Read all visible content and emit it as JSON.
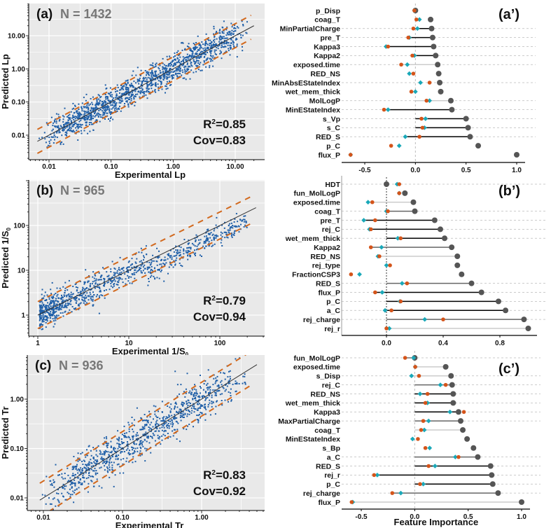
{
  "colors": {
    "plot_bg": "#e9e9e9",
    "grid": "#ffffff",
    "points": "#1f5fa8",
    "fit_line": "#333333",
    "band": "#d2691e",
    "gray_dot": "#555555",
    "orange_dot": "#d4541a",
    "teal_dot": "#1aa8b8",
    "lollipop_dark": "#000000",
    "lollipop_mid": "#666666",
    "lollipop_light": "#cccccc"
  },
  "chart_data": [
    {
      "id": "a",
      "type": "scatter",
      "panel_label": "(a)",
      "n_label": "N = 1432",
      "xlabel": "Experimental Lp",
      "ylabel": "Predicted Lp",
      "scale": "log10",
      "xlim": [
        0.006,
        25
      ],
      "ylim": [
        0.0025,
        60
      ],
      "xticks": [
        {
          "v": 0.01,
          "label": "0.01"
        },
        {
          "v": 0.1,
          "label": "0.10"
        },
        {
          "v": 1,
          "label": "1.00"
        },
        {
          "v": 10,
          "label": "10.00"
        }
      ],
      "yticks": [
        {
          "v": 0.01,
          "label": "0.01"
        },
        {
          "v": 0.1,
          "label": "0.10"
        },
        {
          "v": 1,
          "label": "1.00"
        },
        {
          "v": 10,
          "label": "10.00"
        }
      ],
      "r2_label": "R",
      "r2_value": "=0.85",
      "cov_label": "Cov=0.83",
      "fit_range": [
        0.0065,
        20
      ],
      "band_factor": 2.3,
      "n_points": 1432,
      "spread": 0.22,
      "seed": 11
    },
    {
      "id": "b",
      "type": "scatter",
      "panel_label": "(b)",
      "n_label": "N = 965",
      "xlabel": "Experimental 1/S",
      "xlabel_sub": "0",
      "ylabel": "Predicted  1/S",
      "ylabel_sub": "0",
      "scale": "log10",
      "xlim": [
        0.8,
        350
      ],
      "ylim": [
        0.35,
        900
      ],
      "xticks": [
        {
          "v": 1,
          "label": "1"
        },
        {
          "v": 10,
          "label": "10"
        },
        {
          "v": 100,
          "label": "100"
        }
      ],
      "yticks": [
        {
          "v": 1,
          "label": "1"
        },
        {
          "v": 10,
          "label": "10"
        },
        {
          "v": 100,
          "label": "100"
        }
      ],
      "r2_label": "R",
      "r2_value": "=0.79",
      "cov_label": "Cov=0.94",
      "fit_range": [
        1,
        250
      ],
      "band_factor": 2.0,
      "n_points": 965,
      "spread": 0.17,
      "seed": 23
    },
    {
      "id": "c",
      "type": "scatter",
      "panel_label": "(c)",
      "n_label": "N = 936",
      "xlabel": "Experimental Tr",
      "ylabel": "Predicted Tr",
      "scale": "log10",
      "xlim": [
        0.006,
        7
      ],
      "ylim": [
        0.005,
        7
      ],
      "xticks": [
        {
          "v": 0.01,
          "label": "0.01"
        },
        {
          "v": 0.1,
          "label": "0.10"
        },
        {
          "v": 1,
          "label": "1.00"
        }
      ],
      "yticks": [
        {
          "v": 0.01,
          "label": "0.01"
        },
        {
          "v": 0.1,
          "label": "0.10"
        },
        {
          "v": 1,
          "label": "1.00"
        }
      ],
      "r2_label": "R",
      "r2_value": "=0.83",
      "cov_label": "Cov=0.92",
      "fit_range": [
        0.009,
        5
      ],
      "band_factor": 2.2,
      "n_points": 936,
      "spread": 0.2,
      "seed": 37
    },
    {
      "id": "a_prime",
      "type": "dot",
      "panel_label": "(a’)",
      "xlim": [
        -0.72,
        1.08
      ],
      "xticks": [
        {
          "v": -0.5,
          "label": "-0.5"
        },
        {
          "v": 0,
          "label": "0.0"
        },
        {
          "v": 0.5,
          "label": "0.5"
        },
        {
          "v": 1,
          "label": "1.0"
        }
      ],
      "xlabel": "",
      "features": [
        {
          "name": "p_Disp",
          "gray": 0.0,
          "orange": -0.01,
          "teal": -0.01,
          "line": "none",
          "dashed": false
        },
        {
          "name": "coag_T",
          "gray": 0.15,
          "orange": 0.01,
          "teal": 0.04,
          "line": "none",
          "dashed": false
        },
        {
          "name": "MinPartialCharge",
          "gray": 0.16,
          "orange": -0.02,
          "teal": 0.02,
          "line": "dark",
          "dashed": true
        },
        {
          "name": "pre_T",
          "gray": 0.17,
          "orange": -0.07,
          "teal": -0.06,
          "line": "dark",
          "dashed": true
        },
        {
          "name": "Kappa3",
          "gray": 0.18,
          "orange": -0.27,
          "teal": -0.29,
          "line": "dark",
          "dashed": true
        },
        {
          "name": "Kappa2",
          "gray": 0.2,
          "orange": -0.03,
          "teal": -0.01,
          "line": "dark",
          "dashed": true
        },
        {
          "name": "exposed.time",
          "gray": 0.22,
          "orange": -0.14,
          "teal": -0.08,
          "line": "light",
          "dashed": true
        },
        {
          "name": "RED_NS",
          "gray": 0.23,
          "orange": -0.02,
          "teal": -0.06,
          "line": "none",
          "dashed": false
        },
        {
          "name": "MinAbsEStateIndex",
          "gray": 0.24,
          "orange": 0.14,
          "teal": 0.05,
          "line": "none",
          "dashed": true
        },
        {
          "name": "wet_mem_thick",
          "gray": 0.25,
          "orange": -0.04,
          "teal": 0.0,
          "line": "none",
          "dashed": false
        },
        {
          "name": "MolLogP",
          "gray": 0.35,
          "orange": 0.11,
          "teal": 0.14,
          "line": "light",
          "dashed": true
        },
        {
          "name": "MinEStateIndex",
          "gray": 0.36,
          "orange": -0.31,
          "teal": -0.27,
          "line": "dark",
          "dashed": true
        },
        {
          "name": "s_Vp",
          "gray": 0.5,
          "orange": 0.06,
          "teal": 0.1,
          "line": "dark",
          "dashed": true
        },
        {
          "name": "s_C",
          "gray": 0.52,
          "orange": 0.07,
          "teal": 0.09,
          "line": "dark",
          "dashed": true
        },
        {
          "name": "RED_S",
          "gray": 0.54,
          "orange": 0.04,
          "teal": -0.1,
          "line": "dark",
          "dashed": true
        },
        {
          "name": "p_C",
          "gray": 0.62,
          "orange": -0.24,
          "teal": -0.16,
          "line": "none",
          "dashed": false
        },
        {
          "name": "flux_P",
          "gray": 1.0,
          "orange": -0.64,
          "teal": -0.64,
          "line": "none",
          "dashed": false
        }
      ]
    },
    {
      "id": "b_prime",
      "type": "dot",
      "panel_label": "(b’)",
      "xlim": [
        -0.3,
        0.98
      ],
      "xticks": [
        {
          "v": 0,
          "label": "0.0"
        },
        {
          "v": 0.4,
          "label": "0.4"
        },
        {
          "v": 0.8,
          "label": "0.8"
        }
      ],
      "xlabel": "",
      "zero_dotted": true,
      "features": [
        {
          "name": "HDT",
          "gray": 0.0,
          "orange": 0.09,
          "teal": 0.075,
          "line": "light",
          "dashed": true
        },
        {
          "name": "fun_MolLogP",
          "gray": 0.13,
          "orange": 0.09,
          "teal": 0.09,
          "line": "none",
          "dashed": false
        },
        {
          "name": "exposed.time",
          "gray": 0.19,
          "orange": -0.1,
          "teal": -0.13,
          "line": "light",
          "dashed": false
        },
        {
          "name": "coag_T",
          "gray": 0.2,
          "orange": 0.01,
          "teal": 0.0,
          "line": "mid",
          "dashed": true
        },
        {
          "name": "pre_T",
          "gray": 0.34,
          "orange": -0.08,
          "teal": -0.16,
          "line": "dark",
          "dashed": true
        },
        {
          "name": "rej_C",
          "gray": 0.38,
          "orange": -0.11,
          "teal": -0.12,
          "line": "dark",
          "dashed": true
        },
        {
          "name": "wet_mem_thick",
          "gray": 0.41,
          "orange": 0.1,
          "teal": 0.08,
          "line": "dark",
          "dashed": true
        },
        {
          "name": "Kappa2",
          "gray": 0.46,
          "orange": -0.11,
          "teal": -0.035,
          "line": "mid",
          "dashed": false
        },
        {
          "name": "RED_NS",
          "gray": 0.5,
          "orange": -0.05,
          "teal": -0.06,
          "line": "light",
          "dashed": false
        },
        {
          "name": "rej_type",
          "gray": 0.5,
          "orange": 0.025,
          "teal": 0.0,
          "line": "none",
          "dashed": false
        },
        {
          "name": "FractionCSP3",
          "gray": 0.53,
          "orange": -0.25,
          "teal": -0.19,
          "line": "none",
          "dashed": false
        },
        {
          "name": "RED_S",
          "gray": 0.6,
          "orange": 0.145,
          "teal": 0.11,
          "line": "mid",
          "dashed": true
        },
        {
          "name": "flux_P",
          "gray": 0.67,
          "orange": -0.08,
          "teal": -0.03,
          "line": "dark",
          "dashed": true
        },
        {
          "name": "p_C",
          "gray": 0.79,
          "orange": 0.1,
          "teal": 0.095,
          "line": "dark",
          "dashed": true
        },
        {
          "name": "a_C",
          "gray": 0.84,
          "orange": 0.035,
          "teal": -0.01,
          "line": "dark",
          "dashed": true
        },
        {
          "name": "rej_charge",
          "gray": 0.97,
          "orange": 0.4,
          "teal": 0.27,
          "line": "mid",
          "dashed": true
        },
        {
          "name": "rej_r",
          "gray": 1.0,
          "orange": 0.0,
          "teal": 0.02,
          "line": "light",
          "dashed": false
        }
      ]
    },
    {
      "id": "c_prime",
      "type": "dot",
      "panel_label": "(c’)",
      "xlim": [
        -0.68,
        1.08
      ],
      "xticks": [
        {
          "v": -0.5,
          "label": "-0.5"
        },
        {
          "v": 0,
          "label": "0.0"
        },
        {
          "v": 0.5,
          "label": "0.5"
        },
        {
          "v": 1,
          "label": "1.0"
        }
      ],
      "xlabel": "Feature Importance",
      "features": [
        {
          "name": "fun_MolLogP",
          "gray": 0.0,
          "orange": -0.09,
          "teal": -0.01,
          "line": "mid",
          "dashed": true
        },
        {
          "name": "exposed.time",
          "gray": 0.29,
          "orange": 0.005,
          "teal": 0.005,
          "line": "light",
          "dashed": false
        },
        {
          "name": "s_Disp",
          "gray": 0.34,
          "orange": 0.04,
          "teal": -0.03,
          "line": "light",
          "dashed": true
        },
        {
          "name": "rej_C",
          "gray": 0.35,
          "orange": 0.29,
          "teal": 0.24,
          "line": "mid",
          "dashed": true
        },
        {
          "name": "RED_NS",
          "gray": 0.36,
          "orange": 0.12,
          "teal": 0.05,
          "line": "dark",
          "dashed": true
        },
        {
          "name": "wet_mem_thick",
          "gray": 0.36,
          "orange": 0.1,
          "teal": 0.12,
          "line": "dark",
          "dashed": true
        },
        {
          "name": "Kappa3",
          "gray": 0.41,
          "orange": 0.46,
          "teal": 0.33,
          "line": "dark",
          "dashed": true
        },
        {
          "name": "MaxPartialCharge",
          "gray": 0.43,
          "orange": 0.08,
          "teal": 0.13,
          "line": "mid",
          "dashed": true
        },
        {
          "name": "coag_T",
          "gray": 0.45,
          "orange": 0.06,
          "teal": 0.09,
          "line": "light",
          "dashed": false
        },
        {
          "name": "MinEStateIndex",
          "gray": 0.49,
          "orange": 0.03,
          "teal": -0.02,
          "line": "none",
          "dashed": false
        },
        {
          "name": "s_Bp",
          "gray": 0.55,
          "orange": 0.1,
          "teal": 0.14,
          "line": "none",
          "dashed": false
        },
        {
          "name": "a_C",
          "gray": 0.59,
          "orange": 0.41,
          "teal": 0.38,
          "line": "mid",
          "dashed": true
        },
        {
          "name": "RED_S",
          "gray": 0.71,
          "orange": 0.13,
          "teal": 0.19,
          "line": "dark",
          "dashed": true
        },
        {
          "name": "rej_r",
          "gray": 0.72,
          "orange": -0.38,
          "teal": -0.35,
          "line": "dark",
          "dashed": true
        },
        {
          "name": "p_C",
          "gray": 0.73,
          "orange": 0.05,
          "teal": 0.08,
          "line": "dark",
          "dashed": true
        },
        {
          "name": "rej_charge",
          "gray": 0.78,
          "orange": -0.21,
          "teal": -0.13,
          "line": "mid",
          "dashed": true
        },
        {
          "name": "flux_P",
          "gray": 1.0,
          "orange": -0.59,
          "teal": -0.58,
          "line": "light",
          "dashed": false
        }
      ]
    }
  ]
}
